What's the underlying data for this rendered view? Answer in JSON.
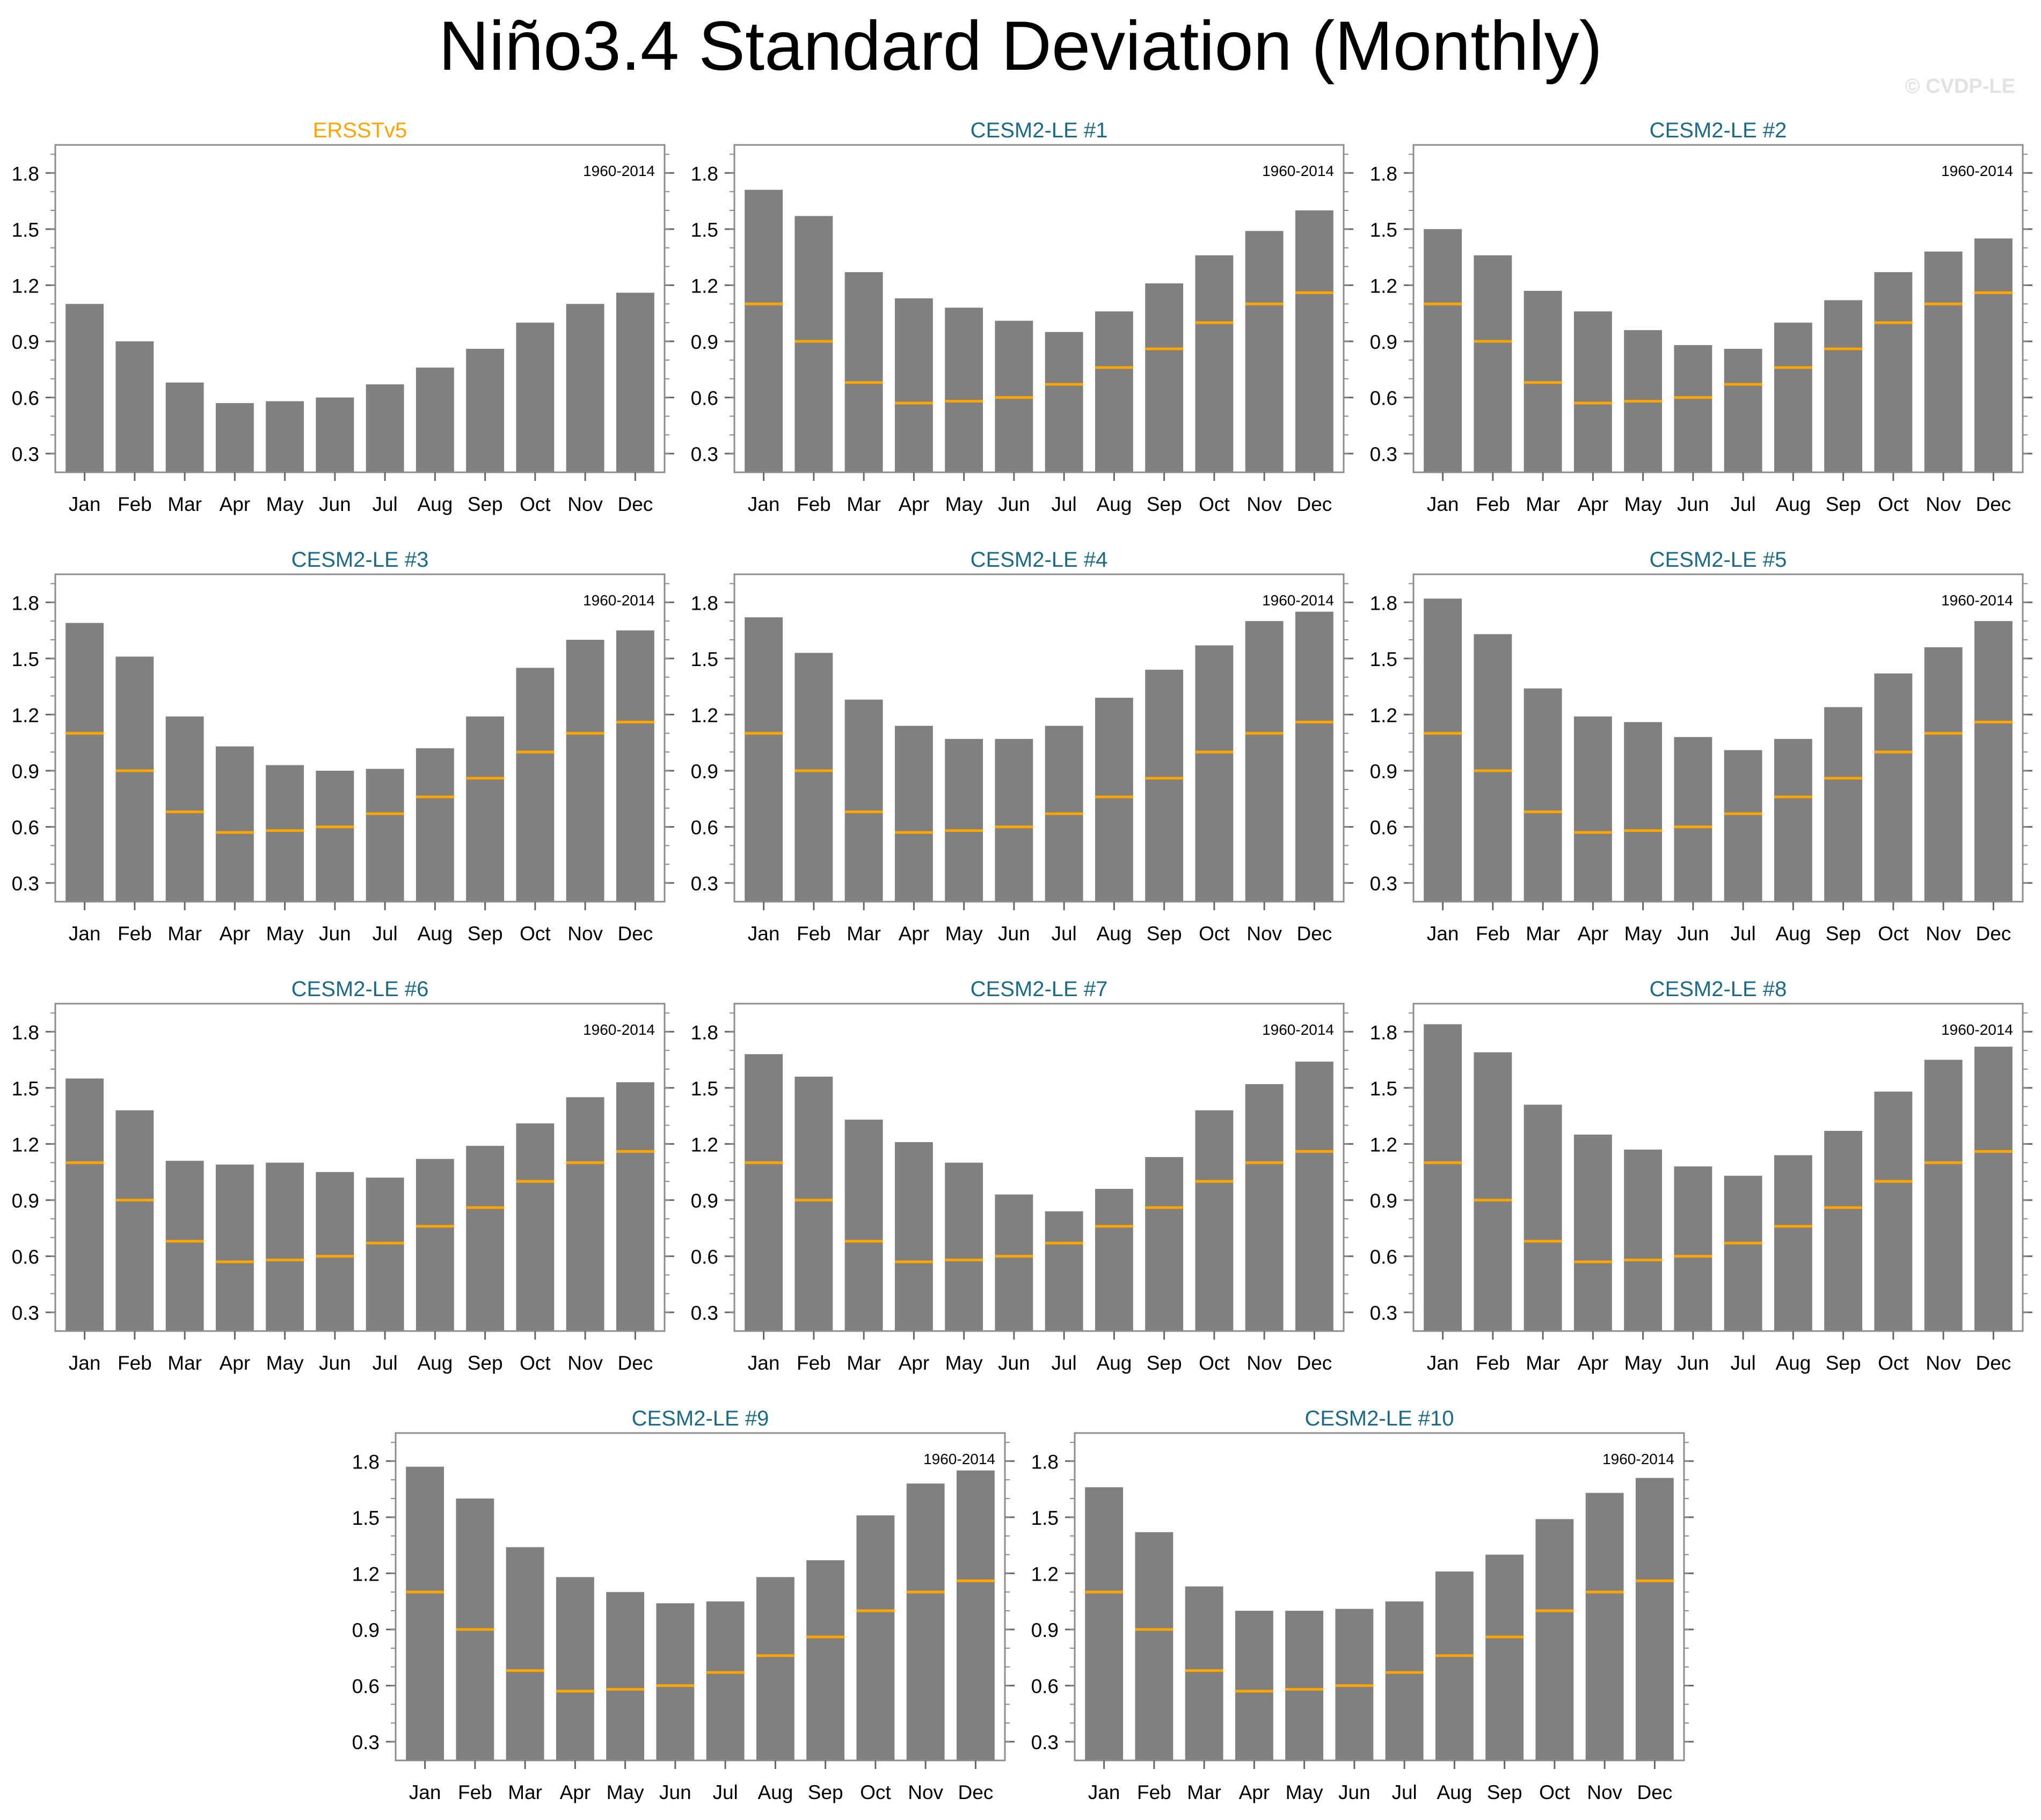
{
  "title": "Niño3.4 Standard Deviation (Monthly)",
  "watermark": "© CVDP-LE",
  "colors": {
    "bar": "#808080",
    "obs_line": "#FFA500",
    "obs_title": "#FFA500",
    "model_title": "#1A6B8A",
    "axis": "#000000"
  },
  "chart_data": {
    "type": "bar",
    "categories": [
      "Jan",
      "Feb",
      "Mar",
      "Apr",
      "May",
      "Jun",
      "Jul",
      "Aug",
      "Sep",
      "Oct",
      "Nov",
      "Dec"
    ],
    "yticks": [
      "0.3",
      "0.6",
      "0.9",
      "1.2",
      "1.5",
      "1.8"
    ],
    "ylim": [
      0.2,
      1.95
    ],
    "period_label": "1960-2014",
    "observed_reference": [
      1.1,
      0.9,
      0.68,
      0.57,
      0.58,
      0.6,
      0.67,
      0.76,
      0.86,
      1.0,
      1.1,
      1.16
    ],
    "panels": [
      {
        "title": "ERSSTv5",
        "is_obs": true,
        "values": [
          1.1,
          0.9,
          0.68,
          0.57,
          0.58,
          0.6,
          0.67,
          0.76,
          0.86,
          1.0,
          1.1,
          1.16
        ]
      },
      {
        "title": "CESM2-LE #1",
        "is_obs": false,
        "values": [
          1.71,
          1.57,
          1.27,
          1.13,
          1.08,
          1.01,
          0.95,
          1.06,
          1.21,
          1.36,
          1.49,
          1.6
        ]
      },
      {
        "title": "CESM2-LE #2",
        "is_obs": false,
        "values": [
          1.5,
          1.36,
          1.17,
          1.06,
          0.96,
          0.88,
          0.86,
          1.0,
          1.12,
          1.27,
          1.38,
          1.45
        ]
      },
      {
        "title": "CESM2-LE #3",
        "is_obs": false,
        "values": [
          1.69,
          1.51,
          1.19,
          1.03,
          0.93,
          0.9,
          0.91,
          1.02,
          1.19,
          1.45,
          1.6,
          1.65
        ]
      },
      {
        "title": "CESM2-LE #4",
        "is_obs": false,
        "values": [
          1.72,
          1.53,
          1.28,
          1.14,
          1.07,
          1.07,
          1.14,
          1.29,
          1.44,
          1.57,
          1.7,
          1.75
        ]
      },
      {
        "title": "CESM2-LE #5",
        "is_obs": false,
        "values": [
          1.82,
          1.63,
          1.34,
          1.19,
          1.16,
          1.08,
          1.01,
          1.07,
          1.24,
          1.42,
          1.56,
          1.7
        ]
      },
      {
        "title": "CESM2-LE #6",
        "is_obs": false,
        "values": [
          1.55,
          1.38,
          1.11,
          1.09,
          1.1,
          1.05,
          1.02,
          1.12,
          1.19,
          1.31,
          1.45,
          1.53
        ]
      },
      {
        "title": "CESM2-LE #7",
        "is_obs": false,
        "values": [
          1.68,
          1.56,
          1.33,
          1.21,
          1.1,
          0.93,
          0.84,
          0.96,
          1.13,
          1.38,
          1.52,
          1.64
        ]
      },
      {
        "title": "CESM2-LE #8",
        "is_obs": false,
        "values": [
          1.84,
          1.69,
          1.41,
          1.25,
          1.17,
          1.08,
          1.03,
          1.14,
          1.27,
          1.48,
          1.65,
          1.72
        ]
      },
      {
        "title": "CESM2-LE #9",
        "is_obs": false,
        "values": [
          1.77,
          1.6,
          1.34,
          1.18,
          1.1,
          1.04,
          1.05,
          1.18,
          1.27,
          1.51,
          1.68,
          1.75
        ]
      },
      {
        "title": "CESM2-LE #10",
        "is_obs": false,
        "values": [
          1.66,
          1.42,
          1.13,
          1.0,
          1.0,
          1.01,
          1.05,
          1.21,
          1.3,
          1.49,
          1.63,
          1.71
        ]
      }
    ]
  }
}
